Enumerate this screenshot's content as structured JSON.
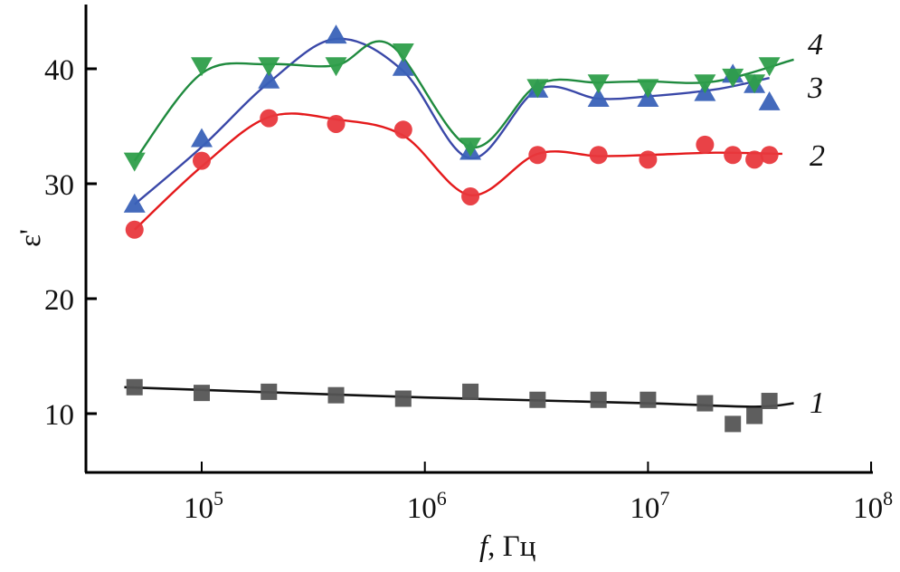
{
  "chart_data": {
    "type": "line",
    "title": "",
    "xlabel_italic": "f",
    "xlabel_unit": ", Гц",
    "ylabel": "ε'",
    "xscale": "log",
    "xlim": [
      30000,
      100000000
    ],
    "ylim": [
      6,
      46
    ],
    "x_ticks": [
      {
        "value": 100000,
        "base": "10",
        "exp": "5"
      },
      {
        "value": 1000000,
        "base": "10",
        "exp": "6"
      },
      {
        "value": 10000000,
        "base": "10",
        "exp": "7"
      },
      {
        "value": 100000000,
        "base": "10",
        "exp": "8"
      }
    ],
    "y_ticks": [
      10,
      20,
      30,
      40
    ],
    "grid": false,
    "legend": "inline labels at right end of curves",
    "series": [
      {
        "name": "1",
        "label": "1",
        "color": "#555555",
        "line_color": "#111111",
        "marker": "square",
        "x": [
          50000,
          100000,
          200000,
          400000,
          800000,
          1600000,
          3200000,
          6000000,
          10000000,
          18000000,
          24000000,
          30000000,
          35000000
        ],
        "y": [
          12.3,
          11.8,
          11.9,
          11.6,
          11.3,
          11.9,
          11.2,
          11.2,
          11.2,
          10.9,
          9.1,
          9.8,
          11.1
        ],
        "fit_x": [
          45000,
          1000000,
          10000000,
          30000000,
          45000000
        ],
        "fit_y": [
          12.3,
          11.4,
          10.9,
          10.6,
          10.9
        ]
      },
      {
        "name": "2",
        "label": "2",
        "color": "#e8383d",
        "line_color": "#e41a1c",
        "marker": "circle",
        "x": [
          50000,
          100000,
          200000,
          400000,
          800000,
          1600000,
          3200000,
          6000000,
          10000000,
          18000000,
          24000000,
          30000000,
          35000000
        ],
        "y": [
          26.0,
          32.0,
          35.7,
          35.2,
          34.7,
          28.9,
          32.5,
          32.5,
          32.1,
          33.4,
          32.5,
          32.1,
          32.5
        ],
        "fit_x": [
          50000,
          100000,
          200000,
          400000,
          800000,
          1600000,
          3200000,
          6000000,
          10000000,
          20000000,
          40000000
        ],
        "fit_y": [
          26.0,
          31.5,
          35.8,
          35.6,
          34.2,
          29.0,
          32.6,
          32.4,
          32.5,
          32.7,
          32.6
        ]
      },
      {
        "name": "3",
        "label": "3",
        "color": "#3a62b8",
        "line_color": "#3a48a8",
        "marker": "triangle-up",
        "x": [
          50000,
          100000,
          200000,
          400000,
          800000,
          1600000,
          3200000,
          6000000,
          10000000,
          18000000,
          24000000,
          30000000,
          35000000
        ],
        "y": [
          28.2,
          33.9,
          39.0,
          42.9,
          40.1,
          32.8,
          38.2,
          37.4,
          37.4,
          37.9,
          39.5,
          38.6,
          37.1
        ],
        "fit_x": [
          50000,
          100000,
          200000,
          400000,
          800000,
          1600000,
          3200000,
          6000000,
          10000000,
          20000000,
          35000000
        ],
        "fit_y": [
          28.2,
          33.2,
          38.8,
          42.6,
          39.8,
          32.2,
          38.2,
          37.4,
          37.6,
          38.2,
          39.2
        ]
      },
      {
        "name": "4",
        "label": "4",
        "color": "#2e9e4a",
        "line_color": "#1f8a3e",
        "marker": "triangle-down",
        "x": [
          50000,
          100000,
          200000,
          400000,
          800000,
          1600000,
          3200000,
          6000000,
          10000000,
          18000000,
          24000000,
          30000000,
          35000000
        ],
        "y": [
          32.0,
          40.3,
          40.3,
          40.3,
          41.5,
          33.3,
          38.4,
          38.8,
          38.4,
          38.8,
          39.3,
          38.8,
          40.3
        ],
        "fit_x": [
          50000,
          100000,
          200000,
          400000,
          700000,
          1600000,
          3200000,
          6000000,
          10000000,
          20000000,
          45000000
        ],
        "fit_y": [
          32.0,
          39.6,
          40.4,
          40.3,
          42.1,
          33.2,
          38.6,
          38.8,
          38.9,
          38.9,
          40.8
        ]
      }
    ]
  }
}
